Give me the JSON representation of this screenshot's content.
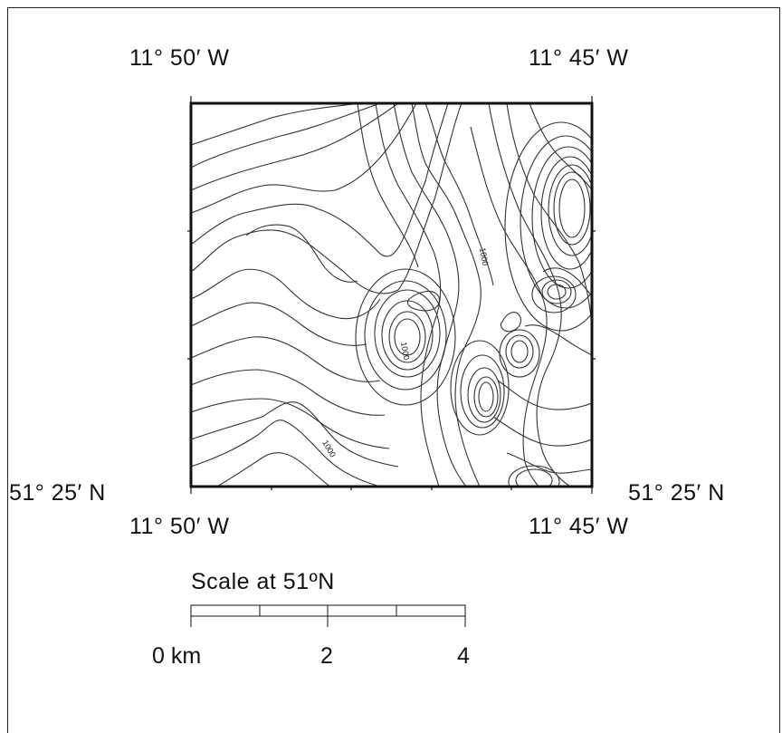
{
  "map": {
    "lon_top_left": "11° 50′ W",
    "lon_top_right": "11° 45′ W",
    "lon_bottom_left": "11° 50′ W",
    "lon_bottom_right": "11° 45′ W",
    "lat_left": "51° 25′ N",
    "lat_right": "51° 25′ N",
    "contour_labels": [
      "1000",
      "1000",
      "1000"
    ]
  },
  "scale": {
    "title": "Scale at 51ºN",
    "ticks": [
      "0 km",
      "2",
      "4"
    ]
  },
  "colors": {
    "ink": "#111111",
    "contour": "#333333",
    "background": "#ffffff"
  }
}
